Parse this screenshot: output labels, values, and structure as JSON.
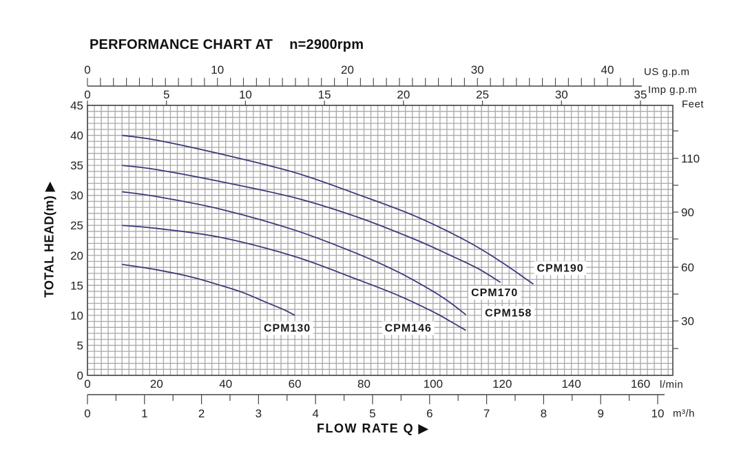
{
  "title": {
    "main": "PERFORMANCE CHART AT",
    "speed": "n=2900rpm"
  },
  "axes": {
    "y_label": "TOTAL HEAD(m) ▶",
    "x_label": "FLOW RATE Q ▶",
    "top1_unit": "US g.p.m",
    "top2_unit": "Imp g.p.m",
    "right_unit": "Feet",
    "bottom1_unit": "l/min",
    "bottom2_unit": "m³/h"
  },
  "colors": {
    "curve": "#3a3a7a",
    "grid": "#a8a8a8",
    "axis": "#444444"
  },
  "chart_data": {
    "type": "line",
    "title": "PERFORMANCE CHART AT n=2900rpm",
    "xlabel": "FLOW RATE Q",
    "ylabel": "TOTAL HEAD(m)",
    "xlim": [
      0,
      169
    ],
    "ylim": [
      0,
      45
    ],
    "grid": true,
    "x_unit": "l/min",
    "y_unit": "m",
    "y_ticks": [
      0,
      5,
      10,
      15,
      20,
      25,
      30,
      35,
      40,
      45
    ],
    "x_ticks_lmin": [
      0,
      20,
      40,
      60,
      80,
      100,
      120,
      140,
      160
    ],
    "x_ticks_m3h": [
      0,
      1,
      2,
      3,
      4,
      5,
      6,
      7,
      8,
      9,
      10
    ],
    "x_ticks_us_gpm": [
      0,
      10,
      20,
      30,
      40
    ],
    "x_ticks_imp_gpm": [
      0,
      5,
      10,
      15,
      20,
      25,
      30,
      35
    ],
    "y_ticks_feet": [
      30,
      60,
      90,
      110
    ],
    "series": [
      {
        "name": "CPM190",
        "x": [
          10,
          20,
          38.5,
          60,
          78,
          95,
          110,
          120,
          129
        ],
        "values": [
          40,
          39.2,
          36.9,
          33.8,
          30.2,
          26.5,
          22.3,
          18.8,
          15.2
        ]
      },
      {
        "name": "CPM170",
        "x": [
          10,
          20,
          38.5,
          60,
          78,
          95,
          105,
          113,
          119.5
        ],
        "values": [
          35,
          34.3,
          32.3,
          29.6,
          26.4,
          22.6,
          20.0,
          17.8,
          15.5
        ]
      },
      {
        "name": "CPM158",
        "x": [
          10,
          20,
          38.5,
          60,
          78,
          90,
          100,
          105,
          109.5
        ],
        "values": [
          30.6,
          29.8,
          27.7,
          24.2,
          20.3,
          17.2,
          14.0,
          12.1,
          10.1
        ]
      },
      {
        "name": "CPM146",
        "x": [
          10,
          20,
          38.5,
          60,
          78,
          90,
          100,
          105,
          109.5
        ],
        "values": [
          25,
          24.5,
          23.0,
          19.8,
          16.0,
          13.3,
          10.6,
          9.0,
          7.5
        ]
      },
      {
        "name": "CPM130",
        "x": [
          10,
          20,
          30,
          38.5,
          45,
          52,
          57,
          60
        ],
        "values": [
          18.5,
          17.6,
          16.4,
          15.0,
          13.8,
          12.1,
          10.9,
          10.0
        ]
      }
    ],
    "annotations": [
      {
        "text": "CPM190",
        "x": 130,
        "y": 17.3
      },
      {
        "text": "CPM170",
        "x": 111,
        "y": 13.2
      },
      {
        "text": "CPM158",
        "x": 115,
        "y": 9.8
      },
      {
        "text": "CPM146",
        "x": 86,
        "y": 7.3
      },
      {
        "text": "CPM130",
        "x": 51,
        "y": 7.3
      }
    ]
  }
}
